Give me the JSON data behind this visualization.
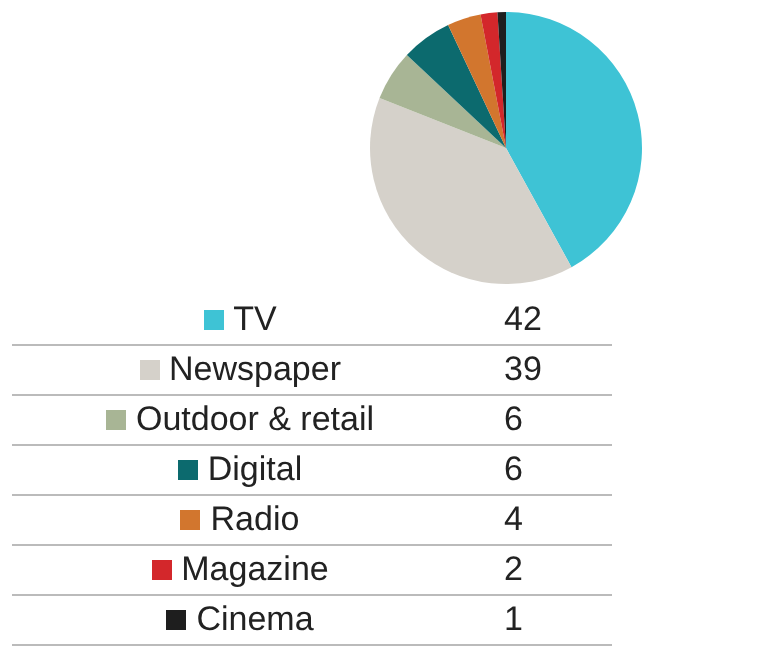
{
  "chart_data": {
    "type": "pie",
    "categories": [
      "TV",
      "Newspaper",
      "Outdoor & retail",
      "Digital",
      "Radio",
      "Magazine",
      "Cinema"
    ],
    "values": [
      42,
      39,
      6,
      6,
      4,
      2,
      1
    ],
    "colors": [
      "#3ec3d5",
      "#d5d1ca",
      "#a8b595",
      "#0c6a6e",
      "#d2762e",
      "#d3272b",
      "#1e1e1e"
    ],
    "data_labels": true,
    "legend": "bottom"
  }
}
